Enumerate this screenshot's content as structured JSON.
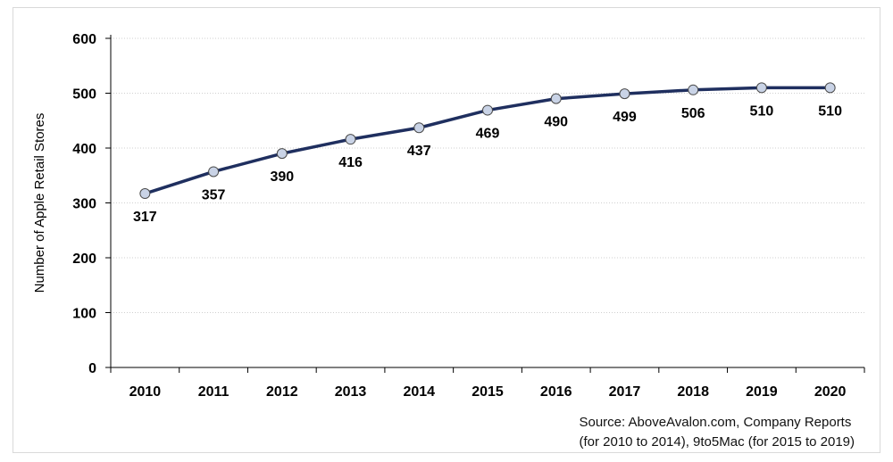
{
  "chart_data": {
    "type": "line",
    "title": "",
    "xlabel": "",
    "ylabel": "Number of Apple Retail Stores",
    "categories": [
      "2010",
      "2011",
      "2012",
      "2013",
      "2014",
      "2015",
      "2016",
      "2017",
      "2018",
      "2019",
      "2020"
    ],
    "series": [
      {
        "values": [
          317,
          357,
          390,
          416,
          437,
          469,
          490,
          499,
          506,
          510,
          510
        ]
      }
    ],
    "ylim": [
      0,
      600
    ],
    "yticks": [
      0,
      100,
      200,
      300,
      400,
      500,
      600
    ],
    "grid": true,
    "legend": "none",
    "data_labels": "below",
    "line_color": "#1f2f5f",
    "marker_fill": "#c9d3e6",
    "gridline_color": "#cfcfcf"
  },
  "source_note": {
    "line1": "Source: AboveAvalon.com, Company Reports",
    "line2": "(for 2010 to 2014), 9to5Mac (for 2015 to 2019)"
  }
}
